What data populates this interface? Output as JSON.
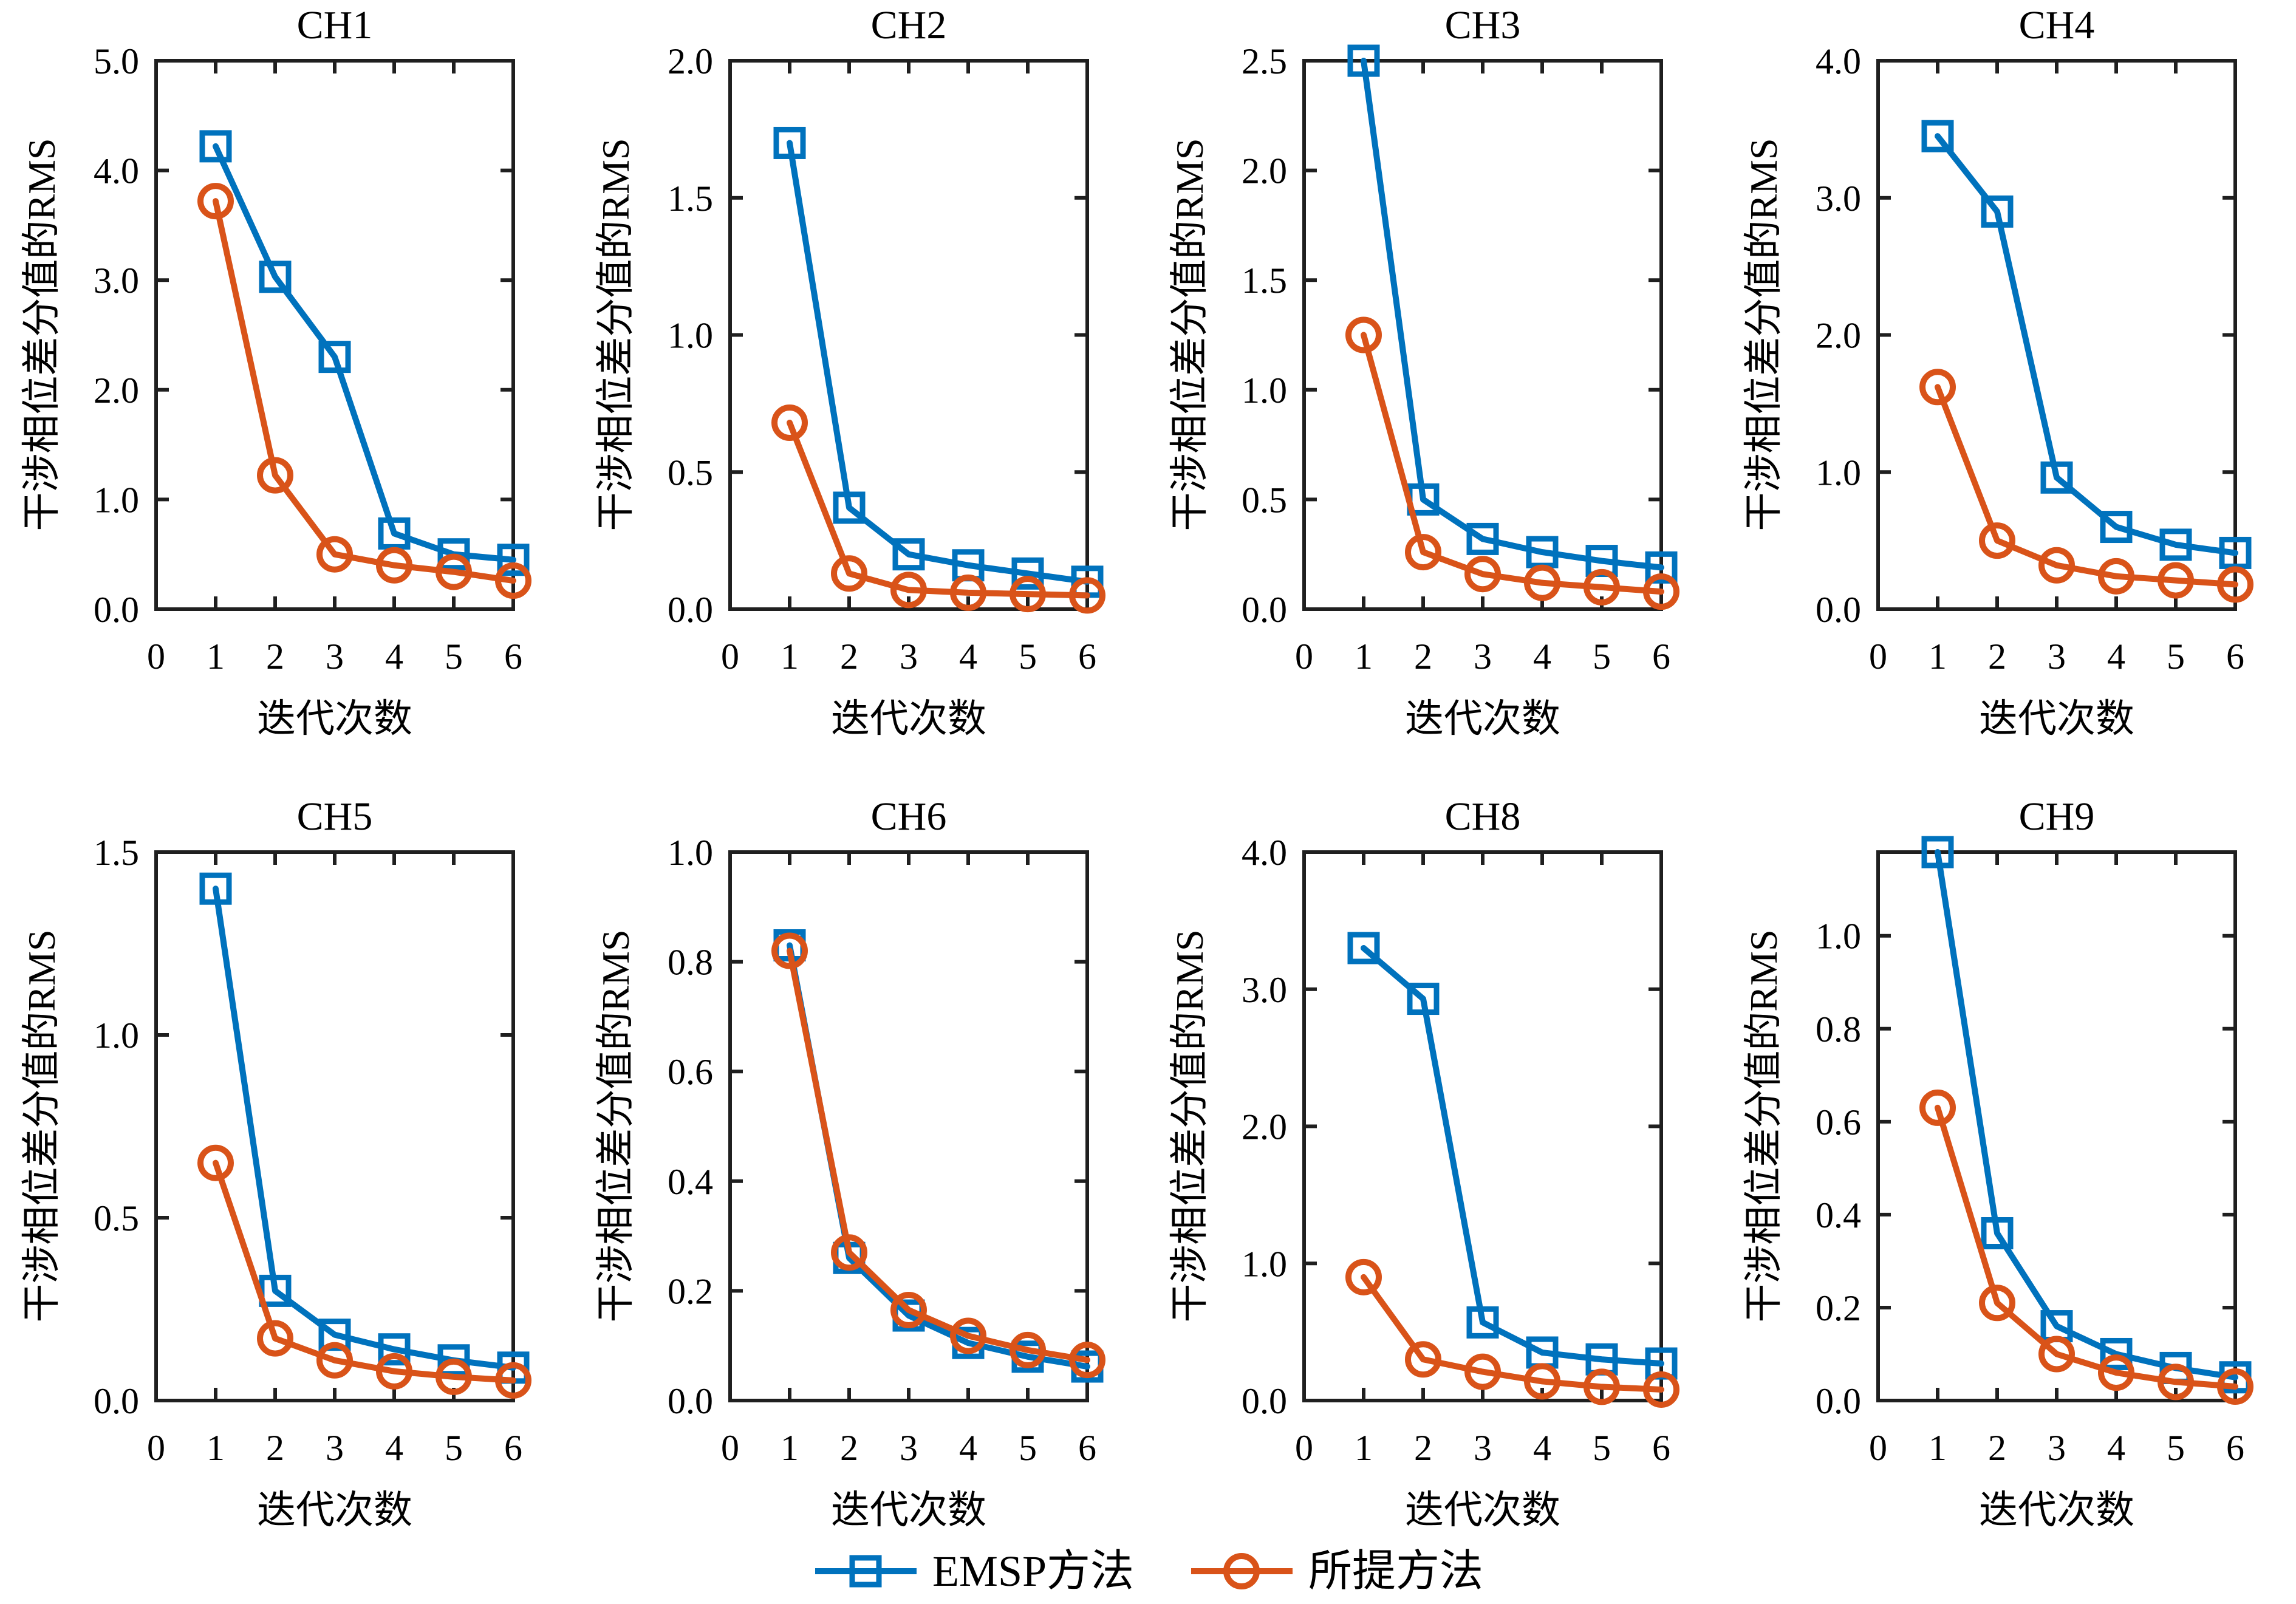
{
  "figure": {
    "background": "#ffffff",
    "axis_color": "#1f1f1f",
    "xlabel": "迭代次数",
    "ylabel": "干涉相位差分值的RMS"
  },
  "legend": {
    "position": "bottom-center",
    "items": [
      {
        "label": "EMSP方法",
        "marker": "square",
        "color": "#0072BD"
      },
      {
        "label": "所提方法",
        "marker": "circle",
        "color": "#D95319"
      }
    ]
  },
  "chart_data": [
    {
      "type": "line",
      "title": "CH1",
      "xlabel": "迭代次数",
      "ylabel": "干涉相位差分值的RMS",
      "x": [
        1,
        2,
        3,
        4,
        5,
        6
      ],
      "xlim": [
        0,
        6
      ],
      "xticks": [
        0,
        1,
        2,
        3,
        4,
        5,
        6
      ],
      "ylim": [
        0,
        5.0
      ],
      "yticks": [
        0,
        1.0,
        2.0,
        3.0,
        4.0,
        5.0
      ],
      "ytick_labels": [
        "0.0",
        "1.0",
        "2.0",
        "3.0",
        "4.0",
        "5.0"
      ],
      "grid": false,
      "legend_position": "none",
      "series": [
        {
          "name": "EMSP方法",
          "color": "#0072BD",
          "marker": "square",
          "values": [
            4.22,
            3.03,
            2.3,
            0.69,
            0.5,
            0.45
          ]
        },
        {
          "name": "所提方法",
          "color": "#D95319",
          "marker": "circle",
          "values": [
            3.72,
            1.22,
            0.5,
            0.4,
            0.34,
            0.26
          ]
        }
      ]
    },
    {
      "type": "line",
      "title": "CH2",
      "xlabel": "迭代次数",
      "ylabel": "干涉相位差分值的RMS",
      "x": [
        1,
        2,
        3,
        4,
        5,
        6
      ],
      "xlim": [
        0,
        6
      ],
      "xticks": [
        0,
        1,
        2,
        3,
        4,
        5,
        6
      ],
      "ylim": [
        0,
        2.0
      ],
      "yticks": [
        0,
        0.5,
        1.0,
        1.5,
        2.0
      ],
      "ytick_labels": [
        "0.0",
        "0.5",
        "1.0",
        "1.5",
        "2.0"
      ],
      "grid": false,
      "legend_position": "none",
      "series": [
        {
          "name": "EMSP方法",
          "color": "#0072BD",
          "marker": "square",
          "values": [
            1.7,
            0.37,
            0.2,
            0.16,
            0.13,
            0.1
          ]
        },
        {
          "name": "所提方法",
          "color": "#D95319",
          "marker": "circle",
          "values": [
            0.68,
            0.13,
            0.07,
            0.06,
            0.055,
            0.05
          ]
        }
      ]
    },
    {
      "type": "line",
      "title": "CH3",
      "xlabel": "迭代次数",
      "ylabel": "干涉相位差分值的RMS",
      "x": [
        1,
        2,
        3,
        4,
        5,
        6
      ],
      "xlim": [
        0,
        6
      ],
      "xticks": [
        0,
        1,
        2,
        3,
        4,
        5,
        6
      ],
      "ylim": [
        0,
        2.5
      ],
      "yticks": [
        0,
        0.5,
        1.0,
        1.5,
        2.0,
        2.5
      ],
      "ytick_labels": [
        "0.0",
        "0.5",
        "1.0",
        "1.5",
        "2.0",
        "2.5"
      ],
      "grid": false,
      "legend_position": "none",
      "series": [
        {
          "name": "EMSP方法",
          "color": "#0072BD",
          "marker": "square",
          "values": [
            2.5,
            0.5,
            0.32,
            0.26,
            0.22,
            0.19
          ]
        },
        {
          "name": "所提方法",
          "color": "#D95319",
          "marker": "circle",
          "values": [
            1.25,
            0.26,
            0.16,
            0.12,
            0.1,
            0.08
          ]
        }
      ]
    },
    {
      "type": "line",
      "title": "CH4",
      "xlabel": "迭代次数",
      "ylabel": "干涉相位差分值的RMS",
      "x": [
        1,
        2,
        3,
        4,
        5,
        6
      ],
      "xlim": [
        0,
        6
      ],
      "xticks": [
        0,
        1,
        2,
        3,
        4,
        5,
        6
      ],
      "ylim": [
        0,
        4.0
      ],
      "yticks": [
        0,
        1.0,
        2.0,
        3.0,
        4.0
      ],
      "ytick_labels": [
        "0.0",
        "1.0",
        "2.0",
        "3.0",
        "4.0"
      ],
      "grid": false,
      "legend_position": "none",
      "series": [
        {
          "name": "EMSP方法",
          "color": "#0072BD",
          "marker": "square",
          "values": [
            3.45,
            2.9,
            0.96,
            0.6,
            0.47,
            0.41
          ]
        },
        {
          "name": "所提方法",
          "color": "#D95319",
          "marker": "circle",
          "values": [
            1.62,
            0.5,
            0.32,
            0.24,
            0.21,
            0.18
          ]
        }
      ]
    },
    {
      "type": "line",
      "title": "CH5",
      "xlabel": "迭代次数",
      "ylabel": "干涉相位差分值的RMS",
      "x": [
        1,
        2,
        3,
        4,
        5,
        6
      ],
      "xlim": [
        0,
        6
      ],
      "xticks": [
        0,
        1,
        2,
        3,
        4,
        5,
        6
      ],
      "ylim": [
        0,
        1.5
      ],
      "yticks": [
        0,
        0.5,
        1.0,
        1.5
      ],
      "ytick_labels": [
        "0.0",
        "0.5",
        "1.0",
        "1.5"
      ],
      "grid": false,
      "legend_position": "none",
      "series": [
        {
          "name": "EMSP方法",
          "color": "#0072BD",
          "marker": "square",
          "values": [
            1.4,
            0.3,
            0.18,
            0.14,
            0.11,
            0.09
          ]
        },
        {
          "name": "所提方法",
          "color": "#D95319",
          "marker": "circle",
          "values": [
            0.65,
            0.17,
            0.11,
            0.08,
            0.065,
            0.055
          ]
        }
      ]
    },
    {
      "type": "line",
      "title": "CH6",
      "xlabel": "迭代次数",
      "ylabel": "干涉相位差分值的RMS",
      "x": [
        1,
        2,
        3,
        4,
        5,
        6
      ],
      "xlim": [
        0,
        6
      ],
      "xticks": [
        0,
        1,
        2,
        3,
        4,
        5,
        6
      ],
      "ylim": [
        0,
        1.0
      ],
      "yticks": [
        0,
        0.2,
        0.4,
        0.6,
        0.8,
        1.0
      ],
      "ytick_labels": [
        "0.0",
        "0.2",
        "0.4",
        "0.6",
        "0.8",
        "1.0"
      ],
      "grid": false,
      "legend_position": "none",
      "series": [
        {
          "name": "EMSP方法",
          "color": "#0072BD",
          "marker": "square",
          "values": [
            0.83,
            0.26,
            0.155,
            0.105,
            0.08,
            0.062
          ]
        },
        {
          "name": "所提方法",
          "color": "#D95319",
          "marker": "circle",
          "values": [
            0.82,
            0.27,
            0.165,
            0.118,
            0.092,
            0.074
          ]
        }
      ]
    },
    {
      "type": "line",
      "title": "CH8",
      "xlabel": "迭代次数",
      "ylabel": "干涉相位差分值的RMS",
      "x": [
        1,
        2,
        3,
        4,
        5,
        6
      ],
      "xlim": [
        0,
        6
      ],
      "xticks": [
        0,
        1,
        2,
        3,
        4,
        5,
        6
      ],
      "ylim": [
        0,
        4.0
      ],
      "yticks": [
        0,
        1.0,
        2.0,
        3.0,
        4.0
      ],
      "ytick_labels": [
        "0.0",
        "1.0",
        "2.0",
        "3.0",
        "4.0"
      ],
      "grid": false,
      "legend_position": "none",
      "series": [
        {
          "name": "EMSP方法",
          "color": "#0072BD",
          "marker": "square",
          "values": [
            3.3,
            2.93,
            0.57,
            0.35,
            0.3,
            0.27
          ]
        },
        {
          "name": "所提方法",
          "color": "#D95319",
          "marker": "circle",
          "values": [
            0.9,
            0.3,
            0.21,
            0.14,
            0.1,
            0.08
          ]
        }
      ]
    },
    {
      "type": "line",
      "title": "CH9",
      "xlabel": "迭代次数",
      "ylabel": "干涉相位差分值的RMS",
      "x": [
        1,
        2,
        3,
        4,
        5,
        6
      ],
      "xlim": [
        0,
        6
      ],
      "xticks": [
        0,
        1,
        2,
        3,
        4,
        5,
        6
      ],
      "ylim": [
        0,
        1.18
      ],
      "yticks": [
        0,
        0.2,
        0.4,
        0.6,
        0.8,
        1.0
      ],
      "ytick_labels": [
        "0.0",
        "0.2",
        "0.4",
        "0.6",
        "0.8",
        "1.0"
      ],
      "grid": false,
      "legend_position": "none",
      "series": [
        {
          "name": "EMSP方法",
          "color": "#0072BD",
          "marker": "square",
          "values": [
            1.18,
            0.36,
            0.16,
            0.1,
            0.07,
            0.05
          ]
        },
        {
          "name": "所提方法",
          "color": "#D95319",
          "marker": "circle",
          "values": [
            0.63,
            0.21,
            0.1,
            0.06,
            0.04,
            0.03
          ]
        }
      ]
    }
  ]
}
